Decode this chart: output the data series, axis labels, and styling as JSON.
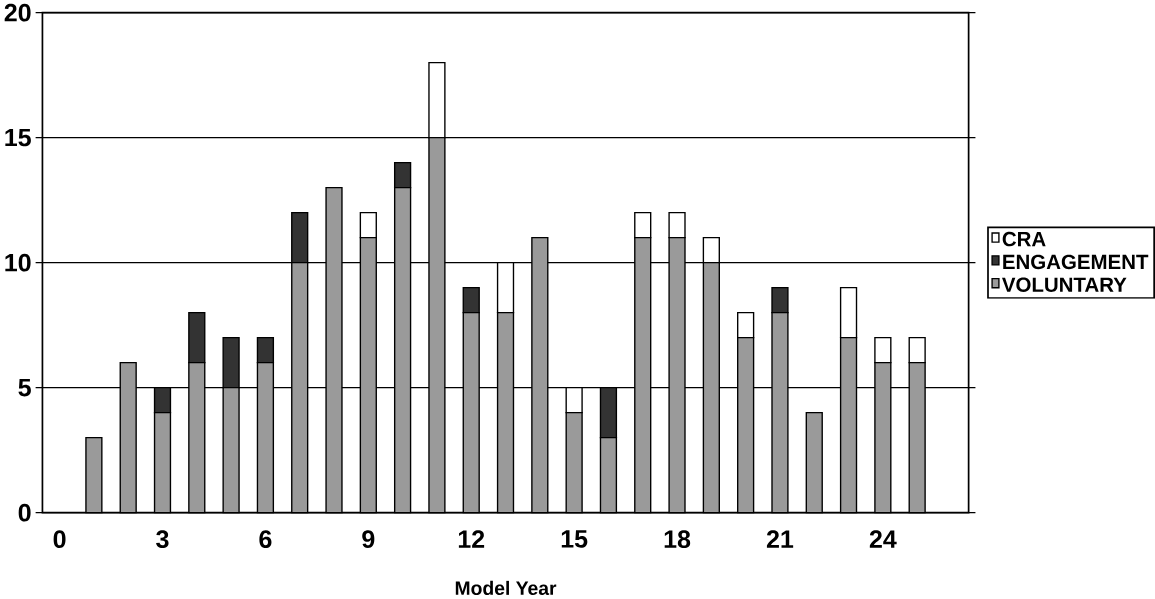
{
  "chart_data": {
    "type": "bar",
    "stacked": true,
    "xlabel": "Model Year",
    "categories": [
      "0",
      null,
      null,
      "3",
      null,
      null,
      "6",
      null,
      null,
      "9",
      null,
      null,
      "12",
      null,
      null,
      "15",
      null,
      null,
      "18",
      null,
      null,
      "21",
      null,
      null,
      "24",
      null,
      null
    ],
    "series": [
      {
        "name": "VOLUNTARY",
        "color": "#9a9a9a",
        "values": [
          null,
          3,
          6,
          4,
          6,
          5,
          6,
          10,
          13,
          11,
          13,
          15,
          8,
          8,
          11,
          4,
          3,
          11,
          11,
          10,
          7,
          8,
          4,
          7,
          6,
          6,
          null
        ]
      },
      {
        "name": "ENGAGEMENT",
        "color": "#333333",
        "values": [
          null,
          0,
          0,
          1,
          2,
          2,
          1,
          2,
          0,
          0,
          1,
          0,
          1,
          0,
          0,
          0,
          2,
          0,
          0,
          0,
          0,
          1,
          0,
          0,
          0,
          0,
          null
        ]
      },
      {
        "name": "CRA",
        "color": "#ffffff",
        "values": [
          null,
          0,
          0,
          0,
          0,
          0,
          0,
          0,
          0,
          1,
          0,
          3,
          0,
          2,
          0,
          1,
          0,
          1,
          1,
          1,
          1,
          0,
          0,
          2,
          1,
          1,
          null
        ]
      }
    ],
    "ylim": [
      0,
      20
    ],
    "yticks": [
      0,
      5,
      10,
      15,
      20
    ],
    "grid": "y",
    "legend": "right"
  }
}
